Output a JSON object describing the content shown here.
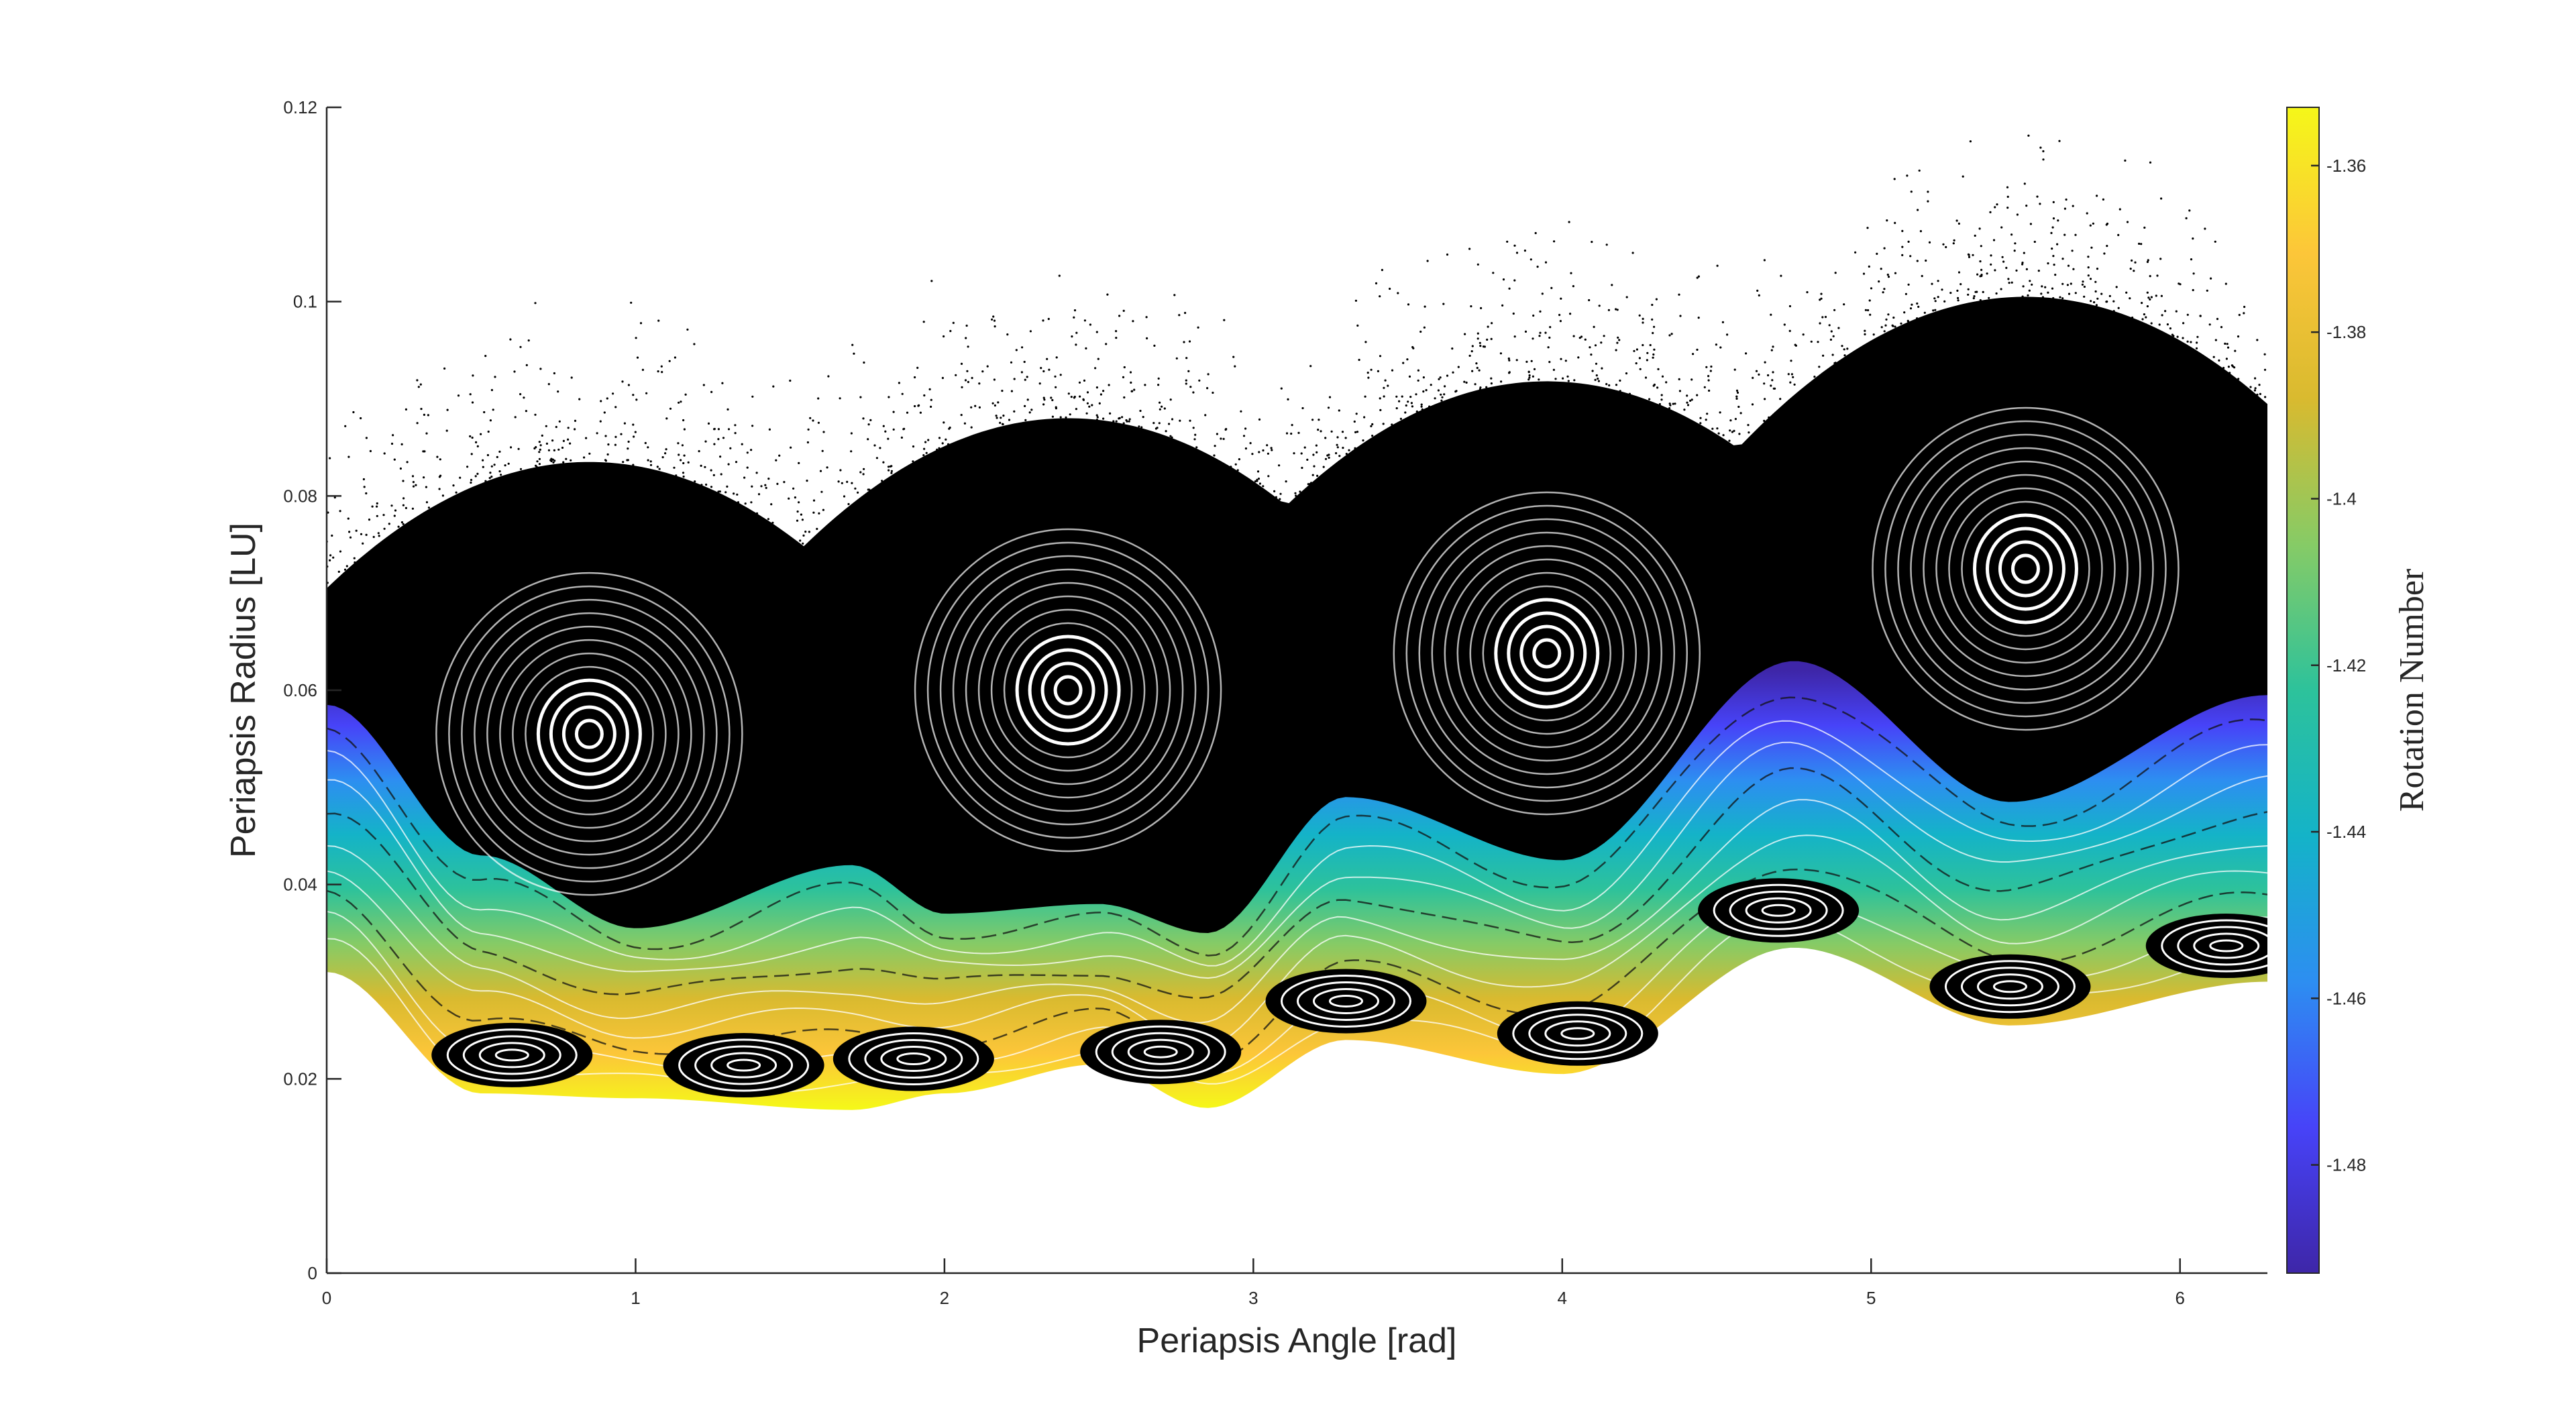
{
  "chart_data": {
    "type": "scatter",
    "title": "",
    "xlabel": "Periapsis Angle [rad]",
    "ylabel": "Periapsis Radius [LU]",
    "xlim": [
      0,
      6.283
    ],
    "ylim": [
      0,
      0.12
    ],
    "xticks": [
      0,
      1,
      2,
      3,
      4,
      5,
      6
    ],
    "xtick_labels": [
      "0",
      "1",
      "2",
      "3",
      "4",
      "5",
      "6"
    ],
    "yticks": [
      0,
      0.02,
      0.04,
      0.06,
      0.08,
      0.1,
      0.12
    ],
    "ytick_labels": [
      "0",
      "0.02",
      "0.04",
      "0.06",
      "0.08",
      "0.1",
      "0.12"
    ],
    "grid": false,
    "colorbar": {
      "label": "Rotation Number",
      "range": [
        -1.493,
        -1.353
      ],
      "ticks": [
        -1.36,
        -1.38,
        -1.4,
        -1.42,
        -1.44,
        -1.46,
        -1.48
      ],
      "tick_labels": [
        "-1.36",
        "-1.38",
        "-1.4",
        "-1.42",
        "-1.44",
        "-1.46",
        "-1.48"
      ],
      "colormap": "parula",
      "colormap_stops": [
        "#3e26a8",
        "#4743f8",
        "#2d8ef1",
        "#14b3c8",
        "#2dc29b",
        "#86cb66",
        "#d9ba2f",
        "#fcc639",
        "#f5f719"
      ]
    },
    "island_centers": [
      {
        "x": 0.85,
        "y": 0.0555
      },
      {
        "x": 2.4,
        "y": 0.06
      },
      {
        "x": 3.95,
        "y": 0.0638
      },
      {
        "x": 5.5,
        "y": 0.0725
      }
    ],
    "colored_band": [
      {
        "x": 0.0,
        "lower": 0.031,
        "upper": 0.0585
      },
      {
        "x": 0.5,
        "lower": 0.0185,
        "upper": 0.043
      },
      {
        "x": 1.0,
        "lower": 0.018,
        "upper": 0.0355
      },
      {
        "x": 1.7,
        "lower": 0.0168,
        "upper": 0.042
      },
      {
        "x": 2.0,
        "lower": 0.0185,
        "upper": 0.037
      },
      {
        "x": 2.5,
        "lower": 0.0215,
        "upper": 0.038
      },
      {
        "x": 2.85,
        "lower": 0.017,
        "upper": 0.035
      },
      {
        "x": 3.3,
        "lower": 0.024,
        "upper": 0.049
      },
      {
        "x": 4.0,
        "lower": 0.0205,
        "upper": 0.0425
      },
      {
        "x": 4.75,
        "lower": 0.0335,
        "upper": 0.063
      },
      {
        "x": 5.45,
        "lower": 0.0255,
        "upper": 0.0485
      },
      {
        "x": 6.283,
        "lower": 0.03,
        "upper": 0.0595
      }
    ]
  }
}
